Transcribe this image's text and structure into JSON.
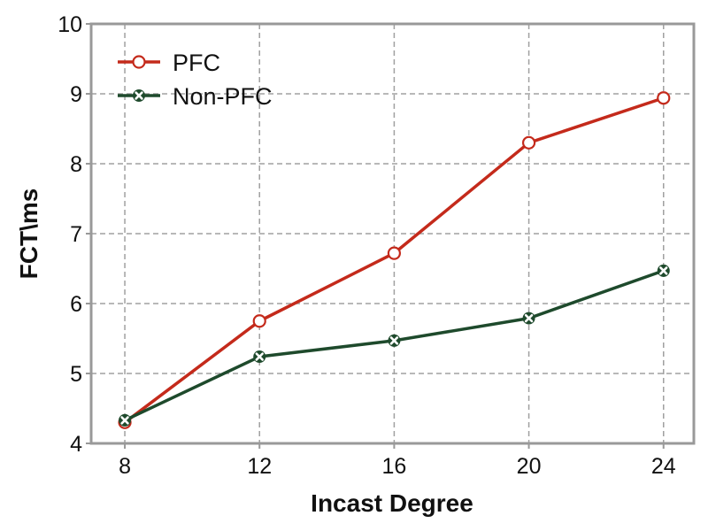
{
  "chart_data": {
    "type": "line",
    "title": "",
    "xlabel": "Incast Degree",
    "ylabel": "FCT\\ms",
    "x": [
      8,
      12,
      16,
      20,
      24
    ],
    "xlim": [
      7,
      24.9
    ],
    "ylim": [
      4,
      10
    ],
    "yticks": [
      4,
      5,
      6,
      7,
      8,
      9,
      10
    ],
    "grid": true,
    "legend_position": "top-left",
    "series": [
      {
        "name": "PFC",
        "values": [
          4.3,
          5.75,
          6.72,
          8.3,
          8.94
        ],
        "color": "#c42a1b",
        "marker": "circle"
      },
      {
        "name": "Non-PFC",
        "values": [
          4.33,
          5.24,
          5.47,
          5.79,
          6.47
        ],
        "color": "#1e4a2c",
        "marker": "x"
      }
    ]
  }
}
